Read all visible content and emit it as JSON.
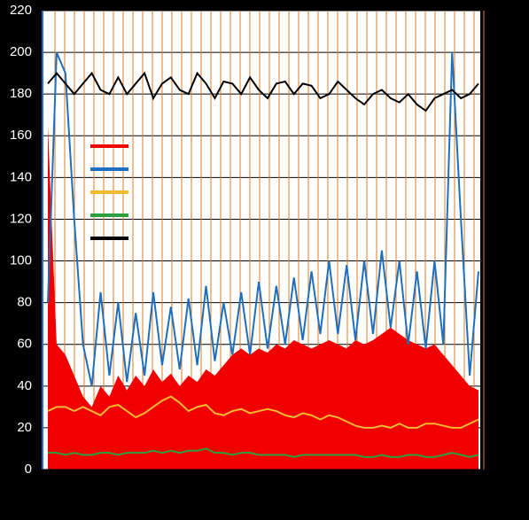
{
  "chart_data": {
    "type": "line",
    "ylim": [
      0,
      220
    ],
    "yticks": [
      0,
      20,
      40,
      60,
      80,
      100,
      120,
      140,
      160,
      180,
      200,
      220
    ],
    "series": [
      {
        "color": "#f00000",
        "fill": true,
        "values": [
          165,
          60,
          55,
          45,
          35,
          30,
          40,
          35,
          45,
          38,
          45,
          40,
          48,
          42,
          46,
          40,
          45,
          42,
          48,
          45,
          50,
          55,
          58,
          55,
          58,
          56,
          60,
          58,
          62,
          60,
          58,
          60,
          62,
          60,
          58,
          62,
          60,
          62,
          65,
          68,
          65,
          62,
          60,
          58,
          60,
          55,
          50,
          45,
          40,
          38
        ]
      },
      {
        "color": "#1f6fbf",
        "fill": false,
        "values": [
          80,
          200,
          190,
          120,
          60,
          40,
          85,
          45,
          80,
          42,
          75,
          45,
          85,
          50,
          78,
          48,
          82,
          50,
          88,
          52,
          80,
          55,
          85,
          55,
          90,
          58,
          88,
          60,
          92,
          62,
          95,
          65,
          100,
          65,
          98,
          62,
          100,
          65,
          105,
          68,
          100,
          60,
          95,
          58,
          100,
          60,
          200,
          120,
          45,
          95
        ]
      },
      {
        "color": "#f5b82e",
        "fill": false,
        "values": [
          28,
          30,
          30,
          28,
          30,
          28,
          26,
          30,
          31,
          28,
          25,
          27,
          30,
          33,
          35,
          32,
          28,
          30,
          31,
          27,
          26,
          28,
          29,
          27,
          28,
          29,
          28,
          26,
          25,
          27,
          26,
          24,
          26,
          25,
          23,
          21,
          20,
          20,
          21,
          20,
          22,
          20,
          20,
          22,
          22,
          21,
          20,
          20,
          22,
          24
        ]
      },
      {
        "color": "#2e9e3e",
        "fill": false,
        "values": [
          8,
          8,
          7,
          8,
          7,
          7,
          8,
          8,
          7,
          8,
          8,
          8,
          9,
          8,
          9,
          8,
          9,
          9,
          10,
          8,
          8,
          7,
          8,
          8,
          7,
          7,
          7,
          7,
          6,
          7,
          7,
          7,
          7,
          7,
          7,
          7,
          6,
          6,
          7,
          6,
          6,
          7,
          7,
          6,
          6,
          7,
          8,
          7,
          6,
          7
        ]
      },
      {
        "color": "#000000",
        "fill": false,
        "values": [
          185,
          190,
          185,
          180,
          185,
          190,
          182,
          180,
          188,
          180,
          185,
          190,
          178,
          185,
          188,
          182,
          180,
          190,
          185,
          178,
          186,
          185,
          180,
          188,
          182,
          178,
          185,
          186,
          180,
          185,
          184,
          178,
          180,
          186,
          182,
          178,
          175,
          180,
          182,
          178,
          176,
          180,
          175,
          172,
          178,
          180,
          182,
          178,
          180,
          185
        ]
      }
    ]
  }
}
